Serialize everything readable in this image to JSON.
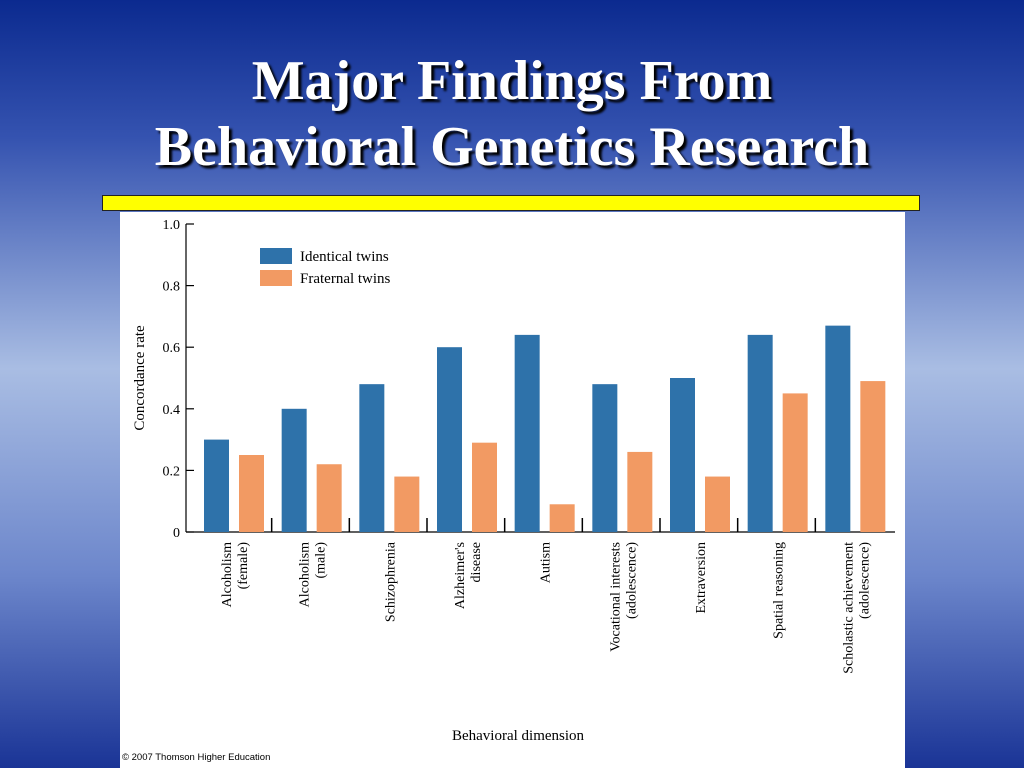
{
  "slide": {
    "title_line1": "Major Findings From",
    "title_line2": "Behavioral Genetics Research",
    "accent_color": "#ffff00"
  },
  "figure": {
    "credit": "© 2007 Thomson Higher Education"
  },
  "chart_data": {
    "type": "bar",
    "title": "",
    "xlabel": "Behavioral dimension",
    "ylabel": "Concordance rate",
    "ylim": [
      0,
      1.0
    ],
    "yticks": [
      "0",
      "0.2",
      "0.4",
      "0.6",
      "0.8",
      "1.0"
    ],
    "grid": false,
    "legend_position": "top-left",
    "categories": [
      [
        "Alcoholism",
        "(female)"
      ],
      [
        "Alcoholism",
        "(male)"
      ],
      [
        "Schizophrenia"
      ],
      [
        "Alzheimer's",
        "disease"
      ],
      [
        "Autism"
      ],
      [
        "Vocational interests",
        "(adolescence)"
      ],
      [
        "Extraversion"
      ],
      [
        "Spatial reasoning"
      ],
      [
        "Scholastic achievement",
        "(adolescence)"
      ]
    ],
    "series": [
      {
        "name": "Identical twins",
        "color": "#2e72aa",
        "values": [
          0.3,
          0.4,
          0.48,
          0.6,
          0.64,
          0.48,
          0.5,
          0.64,
          0.67
        ]
      },
      {
        "name": "Fraternal twins",
        "color": "#f29a63",
        "values": [
          0.25,
          0.22,
          0.18,
          0.29,
          0.09,
          0.26,
          0.18,
          0.45,
          0.49
        ]
      }
    ]
  }
}
